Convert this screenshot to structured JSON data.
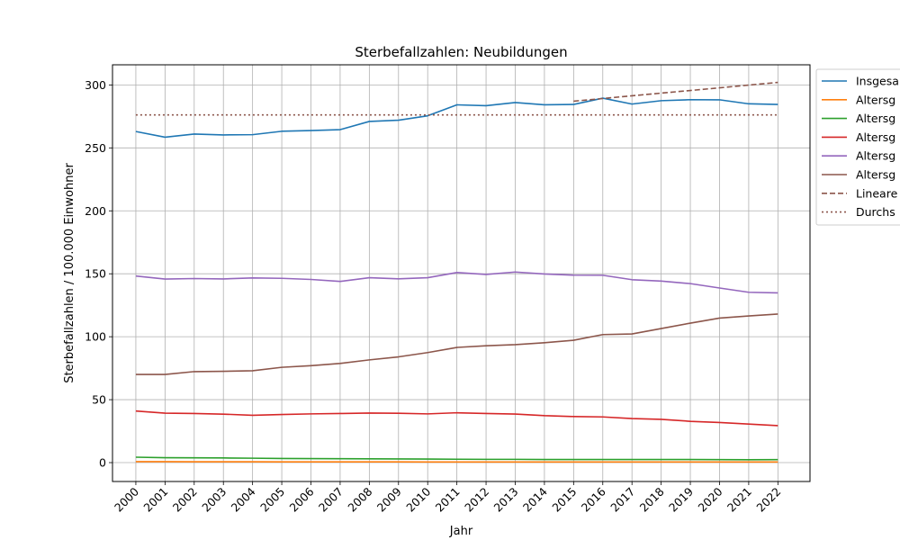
{
  "chart_data": {
    "type": "line",
    "title": "Sterbefallzahlen: Neubildungen",
    "xlabel": "Jahr",
    "ylabel": "Sterbefallzahlen / 100.000 Einwohner",
    "x": [
      2000,
      2001,
      2002,
      2003,
      2004,
      2005,
      2006,
      2007,
      2008,
      2009,
      2010,
      2011,
      2012,
      2013,
      2014,
      2015,
      2016,
      2017,
      2018,
      2019,
      2020,
      2021,
      2022
    ],
    "x_tick_labels": [
      "2000",
      "2001",
      "2002",
      "2003",
      "2004",
      "2005",
      "2006",
      "2007",
      "2008",
      "2009",
      "2010",
      "2011",
      "2012",
      "2013",
      "2014",
      "2015",
      "2016",
      "2017",
      "2018",
      "2019",
      "2020",
      "2021",
      "2022"
    ],
    "y_ticks": [
      0,
      50,
      100,
      150,
      200,
      250,
      300
    ],
    "ylim": [
      -15,
      316
    ],
    "xlim": [
      1999.2,
      2023.1
    ],
    "grid": true,
    "legend_position": "outside-right-top",
    "series": [
      {
        "name": "Insgesa",
        "color": "#1f77b4",
        "style": "solid",
        "values": [
          263,
          258.5,
          261,
          260.3,
          260.5,
          263.2,
          263.8,
          264.5,
          271,
          272,
          275.5,
          284.2,
          283.5,
          286,
          284.2,
          284.5,
          289.5,
          284.8,
          287.5,
          288.3,
          288.2,
          285,
          284.5
        ]
      },
      {
        "name": "Altersg",
        "color": "#ff7f0e",
        "style": "solid",
        "values": [
          0.8,
          0.8,
          0.7,
          0.7,
          0.7,
          0.6,
          0.6,
          0.6,
          0.6,
          0.6,
          0.5,
          0.5,
          0.5,
          0.5,
          0.5,
          0.5,
          0.5,
          0.5,
          0.5,
          0.5,
          0.5,
          0.5,
          0.5
        ]
      },
      {
        "name": "Altersg",
        "color": "#2ca02c",
        "style": "solid",
        "values": [
          4.3,
          3.9,
          3.8,
          3.7,
          3.5,
          3.3,
          3.2,
          3.1,
          3.0,
          2.9,
          2.8,
          2.7,
          2.6,
          2.6,
          2.5,
          2.5,
          2.5,
          2.5,
          2.5,
          2.5,
          2.4,
          2.3,
          2.4
        ]
      },
      {
        "name": "Altersg",
        "color": "#d62728",
        "style": "solid",
        "values": [
          41,
          39.3,
          39,
          38.5,
          37.6,
          38.2,
          38.7,
          39,
          39.4,
          39.2,
          38.7,
          39.6,
          39,
          38.6,
          37.3,
          36.6,
          36.3,
          35,
          34.4,
          32.8,
          31.9,
          30.6,
          29.4
        ]
      },
      {
        "name": "Altersg",
        "color": "#9467bd",
        "style": "solid",
        "values": [
          148.2,
          145.8,
          146.2,
          145.9,
          146.7,
          146.4,
          145.5,
          143.9,
          146.9,
          146,
          146.9,
          151,
          149.5,
          151.4,
          149.8,
          148.9,
          148.8,
          145.3,
          144.2,
          142.2,
          138.7,
          135.3,
          134.8
        ]
      },
      {
        "name": "Altersg",
        "color": "#8c564b",
        "style": "solid",
        "values": [
          70,
          70,
          72.3,
          72.5,
          73,
          75.7,
          77,
          78.8,
          81.6,
          84,
          87.4,
          91.5,
          92.8,
          93.7,
          95.2,
          97.2,
          101.7,
          102.2,
          106.5,
          110.8,
          114.8,
          116.5,
          118
        ]
      },
      {
        "name": "Lineare",
        "color": "#8c564b",
        "style": "dashed",
        "x": [
          2015,
          2016,
          2017,
          2018,
          2019,
          2020,
          2021,
          2022
        ],
        "values": [
          287.1,
          289.2,
          291.4,
          293.5,
          295.6,
          297.7,
          299.9,
          302
        ]
      },
      {
        "name": "Durchs",
        "color": "#8c564b",
        "style": "dotted",
        "x": [
          2000,
          2022
        ],
        "values": [
          276.2,
          276.2
        ]
      }
    ]
  }
}
